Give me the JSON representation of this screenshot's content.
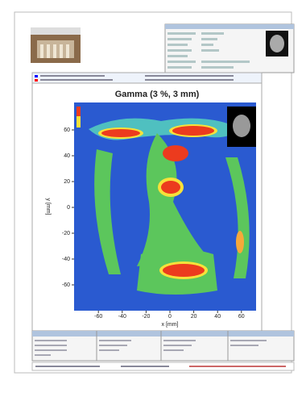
{
  "report": {
    "plot": {
      "title": "Gamma (3 %, 3 mm)",
      "x_label": "x [mm]",
      "y_label": "y [mm]",
      "x_ticks": [
        -60,
        -40,
        -20,
        0,
        20,
        40,
        60
      ],
      "y_ticks": [
        60,
        40,
        20,
        0,
        -20,
        -40,
        -60
      ]
    }
  }
}
